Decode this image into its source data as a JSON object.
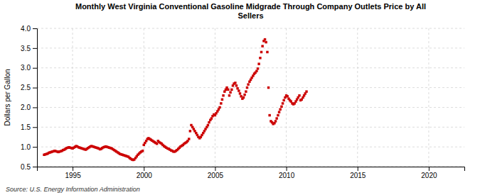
{
  "chart_data": {
    "type": "scatter",
    "title": "Monthly West Virginia Conventional Gasoline Midgrade Through Company Outlets Price by All\nSellers",
    "ylabel": "Dollars per Gallon",
    "annotations": [
      "Source: U.S. Energy Information Administration"
    ],
    "color": "#cc0000",
    "marker": "square",
    "grid": true,
    "xlim": [
      1992.5,
      2022.5
    ],
    "ylim": [
      0.5,
      4.0
    ],
    "xticks": [
      1995,
      2000,
      2005,
      2010,
      2015,
      2020
    ],
    "yticks": [
      0.5,
      {
        "value": 1.0,
        "label": "1.0"
      },
      1.5,
      {
        "value": 2.0,
        "label": "2.0"
      },
      2.5,
      {
        "value": 3.0,
        "label": "3.0"
      },
      3.5,
      {
        "value": 4.0,
        "label": "4.0"
      }
    ],
    "x": [
      1993.0,
      1993.08,
      1993.17,
      1993.25,
      1993.33,
      1993.42,
      1993.5,
      1993.58,
      1993.67,
      1993.75,
      1993.83,
      1993.92,
      1994.0,
      1994.08,
      1994.17,
      1994.25,
      1994.33,
      1994.42,
      1994.5,
      1994.58,
      1994.67,
      1994.75,
      1994.83,
      1994.92,
      1995.0,
      1995.08,
      1995.17,
      1995.25,
      1995.33,
      1995.42,
      1995.5,
      1995.58,
      1995.67,
      1995.75,
      1995.83,
      1995.92,
      1996.0,
      1996.08,
      1996.17,
      1996.25,
      1996.33,
      1996.42,
      1996.5,
      1996.58,
      1996.67,
      1996.75,
      1996.83,
      1996.92,
      1997.0,
      1997.08,
      1997.17,
      1997.25,
      1997.33,
      1997.42,
      1997.5,
      1997.58,
      1997.67,
      1997.75,
      1997.83,
      1997.92,
      1998.0,
      1998.08,
      1998.17,
      1998.25,
      1998.33,
      1998.42,
      1998.5,
      1998.58,
      1998.67,
      1998.75,
      1998.83,
      1998.92,
      1999.0,
      1999.08,
      1999.17,
      1999.25,
      1999.33,
      1999.42,
      1999.5,
      1999.58,
      1999.67,
      1999.75,
      1999.83,
      1999.92,
      2000.0,
      2000.08,
      2000.17,
      2000.25,
      2000.33,
      2000.42,
      2000.5,
      2000.58,
      2000.67,
      2000.75,
      2000.83,
      2000.92,
      2001.0,
      2001.08,
      2001.17,
      2001.25,
      2001.33,
      2001.42,
      2001.5,
      2001.58,
      2001.67,
      2001.75,
      2001.83,
      2001.92,
      2002.0,
      2002.08,
      2002.17,
      2002.25,
      2002.33,
      2002.42,
      2002.5,
      2002.58,
      2002.67,
      2002.75,
      2002.83,
      2002.92,
      2003.0,
      2003.08,
      2003.17,
      2003.25,
      2003.33,
      2003.42,
      2003.5,
      2003.58,
      2003.67,
      2003.75,
      2003.83,
      2003.92,
      2004.0,
      2004.08,
      2004.17,
      2004.25,
      2004.33,
      2004.42,
      2004.5,
      2004.58,
      2004.67,
      2004.75,
      2004.83,
      2004.92,
      2005.0,
      2005.08,
      2005.17,
      2005.25,
      2005.33,
      2005.42,
      2005.5,
      2005.58,
      2005.67,
      2005.75,
      2005.83,
      2005.92,
      2006.0,
      2006.08,
      2006.17,
      2006.25,
      2006.33,
      2006.42,
      2006.5,
      2006.58,
      2006.67,
      2006.75,
      2006.83,
      2006.92,
      2007.0,
      2007.08,
      2007.17,
      2007.25,
      2007.33,
      2007.42,
      2007.5,
      2007.58,
      2007.67,
      2007.75,
      2007.83,
      2007.92,
      2008.0,
      2008.08,
      2008.17,
      2008.25,
      2008.33,
      2008.42,
      2008.5,
      2008.58,
      2008.67,
      2008.75,
      2008.83,
      2008.92,
      2009.0,
      2009.08,
      2009.17,
      2009.25,
      2009.33,
      2009.42,
      2009.5,
      2009.58,
      2009.67,
      2009.75,
      2009.83,
      2009.92,
      2010.0,
      2010.08,
      2010.17,
      2010.25,
      2010.33,
      2010.42,
      2010.5,
      2010.58,
      2010.67,
      2010.75,
      2010.83,
      2010.92,
      2011.0,
      2011.08,
      2011.17,
      2011.25,
      2011.33,
      2011.42
    ],
    "values": [
      0.8,
      0.81,
      0.82,
      0.83,
      0.85,
      0.86,
      0.87,
      0.88,
      0.89,
      0.9,
      0.89,
      0.88,
      0.87,
      0.88,
      0.89,
      0.9,
      0.92,
      0.93,
      0.95,
      0.97,
      0.98,
      0.99,
      0.98,
      0.97,
      0.96,
      0.98,
      1.0,
      1.02,
      1.01,
      0.99,
      0.98,
      0.97,
      0.96,
      0.95,
      0.94,
      0.93,
      0.95,
      0.97,
      0.99,
      1.01,
      1.02,
      1.01,
      1.0,
      0.99,
      0.98,
      0.97,
      0.96,
      0.94,
      0.95,
      0.97,
      0.99,
      1.0,
      1.01,
      1.0,
      0.99,
      0.98,
      0.97,
      0.96,
      0.94,
      0.92,
      0.9,
      0.88,
      0.86,
      0.84,
      0.82,
      0.81,
      0.8,
      0.79,
      0.78,
      0.77,
      0.76,
      0.75,
      0.72,
      0.7,
      0.68,
      0.67,
      0.68,
      0.72,
      0.76,
      0.8,
      0.83,
      0.86,
      0.88,
      0.9,
      1.05,
      1.1,
      1.15,
      1.2,
      1.22,
      1.2,
      1.18,
      1.16,
      1.14,
      1.12,
      1.1,
      1.08,
      1.15,
      1.12,
      1.1,
      1.08,
      1.05,
      1.02,
      1.0,
      0.98,
      0.96,
      0.95,
      0.93,
      0.91,
      0.9,
      0.88,
      0.88,
      0.9,
      0.92,
      0.95,
      0.98,
      1.01,
      1.03,
      1.05,
      1.08,
      1.1,
      1.12,
      1.15,
      1.2,
      1.4,
      1.55,
      1.5,
      1.45,
      1.4,
      1.35,
      1.3,
      1.25,
      1.22,
      1.25,
      1.3,
      1.35,
      1.4,
      1.45,
      1.5,
      1.55,
      1.62,
      1.68,
      1.72,
      1.78,
      1.82,
      1.8,
      1.85,
      1.9,
      1.95,
      2.0,
      2.1,
      2.2,
      2.3,
      2.4,
      2.45,
      2.5,
      2.45,
      2.3,
      2.38,
      2.45,
      2.55,
      2.6,
      2.62,
      2.55,
      2.48,
      2.42,
      2.35,
      2.28,
      2.22,
      2.25,
      2.32,
      2.4,
      2.5,
      2.58,
      2.65,
      2.7,
      2.75,
      2.8,
      2.85,
      2.88,
      2.92,
      2.98,
      3.1,
      3.25,
      3.4,
      3.55,
      3.68,
      3.72,
      3.65,
      3.4,
      2.5,
      1.8,
      1.65,
      1.62,
      1.58,
      1.6,
      1.65,
      1.72,
      1.8,
      1.88,
      1.95,
      2.02,
      2.1,
      2.18,
      2.25,
      2.3,
      2.28,
      2.22,
      2.18,
      2.15,
      2.1,
      2.08,
      2.1,
      2.15,
      2.2,
      2.25,
      2.3,
      2.18,
      2.2,
      2.25,
      2.3,
      2.35,
      2.4
    ]
  }
}
